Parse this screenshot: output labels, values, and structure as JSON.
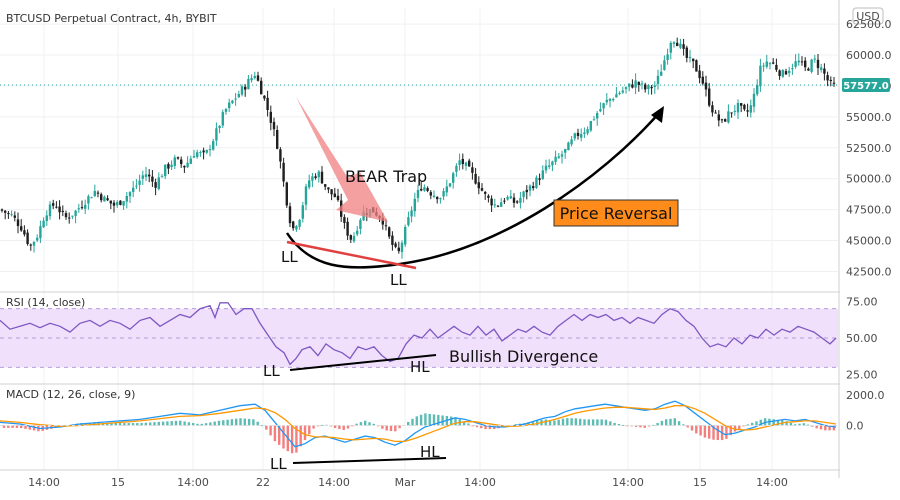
{
  "header": {
    "title": "BTCUSD Perpetual Contract, 4h, BYBIT",
    "currency_badge": "USD"
  },
  "chart_data": [
    {
      "type": "candlestick",
      "pane": "price",
      "title": "BTCUSD Perpetual Contract, 4h, BYBIT",
      "y_ticks": [
        "62500.0",
        "60000.0",
        "57500.0",
        "55000.0",
        "52500.0",
        "50000.0",
        "47500.0",
        "45000.0",
        "42500.0"
      ],
      "y_range": [
        41000,
        63800
      ],
      "last_price": 57577.0,
      "last_price_label": "57577.0",
      "close_path": [
        [
          0,
          47500
        ],
        [
          12,
          47000
        ],
        [
          22,
          46000
        ],
        [
          30,
          44500
        ],
        [
          38,
          45500
        ],
        [
          45,
          47200
        ],
        [
          55,
          48000
        ],
        [
          65,
          46800
        ],
        [
          75,
          47300
        ],
        [
          85,
          48200
        ],
        [
          95,
          49000
        ],
        [
          105,
          48300
        ],
        [
          115,
          47800
        ],
        [
          125,
          48500
        ],
        [
          135,
          49300
        ],
        [
          145,
          50500
        ],
        [
          155,
          49500
        ],
        [
          165,
          50800
        ],
        [
          175,
          51500
        ],
        [
          185,
          51000
        ],
        [
          195,
          52200
        ],
        [
          205,
          51800
        ],
        [
          215,
          53500
        ],
        [
          225,
          55500
        ],
        [
          235,
          56500
        ],
        [
          245,
          57500
        ],
        [
          255,
          58500
        ],
        [
          262,
          57000
        ],
        [
          270,
          55000
        ],
        [
          278,
          52500
        ],
        [
          285,
          49000
        ],
        [
          292,
          45800
        ],
        [
          300,
          47000
        ],
        [
          308,
          49800
        ],
        [
          318,
          50500
        ],
        [
          328,
          49000
        ],
        [
          336,
          48500
        ],
        [
          345,
          46000
        ],
        [
          352,
          45000
        ],
        [
          362,
          47200
        ],
        [
          372,
          47500
        ],
        [
          382,
          46800
        ],
        [
          390,
          45000
        ],
        [
          398,
          43800
        ],
        [
          406,
          46000
        ],
        [
          414,
          48200
        ],
        [
          422,
          49500
        ],
        [
          432,
          48800
        ],
        [
          442,
          48500
        ],
        [
          450,
          49800
        ],
        [
          460,
          51500
        ],
        [
          468,
          50800
        ],
        [
          478,
          49600
        ],
        [
          486,
          48500
        ],
        [
          496,
          47800
        ],
        [
          506,
          48500
        ],
        [
          516,
          48000
        ],
        [
          526,
          49000
        ],
        [
          536,
          49800
        ],
        [
          546,
          50800
        ],
        [
          556,
          51500
        ],
        [
          566,
          52300
        ],
        [
          576,
          53500
        ],
        [
          586,
          54000
        ],
        [
          596,
          55200
        ],
        [
          606,
          56200
        ],
        [
          616,
          56800
        ],
        [
          626,
          57300
        ],
        [
          636,
          57800
        ],
        [
          646,
          57200
        ],
        [
          656,
          57600
        ],
        [
          664,
          59500
        ],
        [
          672,
          61500
        ],
        [
          678,
          61000
        ],
        [
          686,
          59800
        ],
        [
          694,
          59200
        ],
        [
          702,
          58000
        ],
        [
          710,
          56000
        ],
        [
          716,
          55000
        ],
        [
          722,
          54500
        ],
        [
          730,
          55400
        ],
        [
          738,
          55800
        ],
        [
          746,
          55200
        ],
        [
          752,
          56000
        ],
        [
          760,
          58800
        ],
        [
          766,
          59500
        ],
        [
          774,
          59200
        ],
        [
          782,
          58400
        ],
        [
          790,
          59000
        ],
        [
          798,
          59500
        ],
        [
          806,
          58800
        ],
        [
          814,
          59600
        ],
        [
          822,
          58800
        ],
        [
          830,
          57600
        ],
        [
          836,
          57400
        ]
      ],
      "annotations": {
        "bear_trap": "BEAR Trap",
        "price_reversal": "Price Reversal",
        "ll_left": "LL",
        "ll_bottom": "LL"
      }
    },
    {
      "type": "line",
      "pane": "rsi",
      "title": "RSI (14, close)",
      "y_ticks": [
        "75.00",
        "50.00",
        "25.00"
      ],
      "y_range": [
        20,
        80
      ],
      "band": [
        30,
        70
      ],
      "midline": 50,
      "values_path": [
        [
          0,
          62
        ],
        [
          10,
          56
        ],
        [
          20,
          58
        ],
        [
          30,
          60
        ],
        [
          40,
          57
        ],
        [
          50,
          60
        ],
        [
          60,
          58
        ],
        [
          70,
          54
        ],
        [
          80,
          60
        ],
        [
          90,
          62
        ],
        [
          100,
          58
        ],
        [
          110,
          62
        ],
        [
          120,
          60
        ],
        [
          130,
          56
        ],
        [
          140,
          62
        ],
        [
          150,
          64
        ],
        [
          160,
          58
        ],
        [
          170,
          62
        ],
        [
          180,
          66
        ],
        [
          190,
          64
        ],
        [
          200,
          70
        ],
        [
          210,
          72
        ],
        [
          215,
          64
        ],
        [
          220,
          74
        ],
        [
          228,
          74
        ],
        [
          236,
          66
        ],
        [
          244,
          70
        ],
        [
          252,
          70
        ],
        [
          260,
          60
        ],
        [
          268,
          52
        ],
        [
          276,
          44
        ],
        [
          284,
          40
        ],
        [
          290,
          32
        ],
        [
          296,
          36
        ],
        [
          302,
          42
        ],
        [
          310,
          44
        ],
        [
          318,
          38
        ],
        [
          326,
          46
        ],
        [
          334,
          42
        ],
        [
          342,
          40
        ],
        [
          350,
          36
        ],
        [
          358,
          44
        ],
        [
          366,
          42
        ],
        [
          374,
          44
        ],
        [
          382,
          38
        ],
        [
          390,
          34
        ],
        [
          398,
          36
        ],
        [
          406,
          46
        ],
        [
          414,
          52
        ],
        [
          422,
          50
        ],
        [
          430,
          56
        ],
        [
          438,
          50
        ],
        [
          446,
          54
        ],
        [
          454,
          58
        ],
        [
          462,
          54
        ],
        [
          470,
          52
        ],
        [
          478,
          58
        ],
        [
          486,
          52
        ],
        [
          494,
          56
        ],
        [
          502,
          48
        ],
        [
          510,
          52
        ],
        [
          518,
          56
        ],
        [
          526,
          54
        ],
        [
          534,
          58
        ],
        [
          542,
          54
        ],
        [
          550,
          52
        ],
        [
          558,
          58
        ],
        [
          566,
          62
        ],
        [
          574,
          66
        ],
        [
          582,
          62
        ],
        [
          590,
          66
        ],
        [
          598,
          64
        ],
        [
          606,
          66
        ],
        [
          614,
          62
        ],
        [
          622,
          64
        ],
        [
          630,
          60
        ],
        [
          638,
          64
        ],
        [
          646,
          62
        ],
        [
          654,
          60
        ],
        [
          662,
          66
        ],
        [
          670,
          70
        ],
        [
          678,
          68
        ],
        [
          686,
          62
        ],
        [
          694,
          58
        ],
        [
          702,
          50
        ],
        [
          710,
          44
        ],
        [
          718,
          46
        ],
        [
          726,
          44
        ],
        [
          734,
          50
        ],
        [
          742,
          46
        ],
        [
          750,
          52
        ],
        [
          758,
          50
        ],
        [
          766,
          56
        ],
        [
          774,
          52
        ],
        [
          782,
          56
        ],
        [
          790,
          54
        ],
        [
          798,
          58
        ],
        [
          806,
          56
        ],
        [
          814,
          54
        ],
        [
          822,
          50
        ],
        [
          830,
          46
        ],
        [
          836,
          50
        ]
      ],
      "annotations": {
        "bullish_divergence": "Bullish Divergence",
        "ll": "LL",
        "hl": "HL"
      }
    },
    {
      "type": "macd",
      "pane": "macd",
      "title": "MACD (12, 26, close, 9)",
      "y_ticks": [
        "2000.0",
        "0.0"
      ],
      "y_range": [
        -2800,
        2600
      ],
      "macd_path": [
        [
          0,
          200
        ],
        [
          20,
          100
        ],
        [
          40,
          -200
        ],
        [
          60,
          -100
        ],
        [
          80,
          100
        ],
        [
          100,
          200
        ],
        [
          120,
          300
        ],
        [
          140,
          400
        ],
        [
          160,
          600
        ],
        [
          180,
          800
        ],
        [
          200,
          700
        ],
        [
          220,
          1000
        ],
        [
          240,
          1300
        ],
        [
          255,
          1400
        ],
        [
          265,
          1000
        ],
        [
          275,
          200
        ],
        [
          285,
          -600
        ],
        [
          295,
          -1400
        ],
        [
          305,
          -1200
        ],
        [
          315,
          -800
        ],
        [
          325,
          -700
        ],
        [
          335,
          -900
        ],
        [
          345,
          -1100
        ],
        [
          355,
          -900
        ],
        [
          365,
          -700
        ],
        [
          375,
          -800
        ],
        [
          385,
          -1100
        ],
        [
          395,
          -1300
        ],
        [
          405,
          -1000
        ],
        [
          415,
          -500
        ],
        [
          425,
          -100
        ],
        [
          435,
          100
        ],
        [
          445,
          300
        ],
        [
          455,
          500
        ],
        [
          465,
          400
        ],
        [
          475,
          200
        ],
        [
          485,
          0
        ],
        [
          495,
          -100
        ],
        [
          505,
          -100
        ],
        [
          515,
          0
        ],
        [
          525,
          100
        ],
        [
          535,
          300
        ],
        [
          545,
          500
        ],
        [
          555,
          600
        ],
        [
          565,
          900
        ],
        [
          575,
          1100
        ],
        [
          585,
          1200
        ],
        [
          595,
          1300
        ],
        [
          605,
          1400
        ],
        [
          615,
          1300
        ],
        [
          625,
          1200
        ],
        [
          635,
          1100
        ],
        [
          645,
          1000
        ],
        [
          655,
          1100
        ],
        [
          665,
          1400
        ],
        [
          675,
          1600
        ],
        [
          685,
          1300
        ],
        [
          695,
          800
        ],
        [
          705,
          300
        ],
        [
          715,
          -200
        ],
        [
          725,
          -600
        ],
        [
          735,
          -500
        ],
        [
          745,
          -300
        ],
        [
          755,
          -100
        ],
        [
          765,
          200
        ],
        [
          775,
          300
        ],
        [
          785,
          400
        ],
        [
          795,
          300
        ],
        [
          805,
          400
        ],
        [
          815,
          200
        ],
        [
          825,
          0
        ],
        [
          836,
          -100
        ]
      ],
      "signal_path": [
        [
          0,
          300
        ],
        [
          20,
          200
        ],
        [
          40,
          50
        ],
        [
          60,
          -50
        ],
        [
          80,
          0
        ],
        [
          100,
          100
        ],
        [
          120,
          200
        ],
        [
          140,
          300
        ],
        [
          160,
          450
        ],
        [
          180,
          600
        ],
        [
          200,
          650
        ],
        [
          220,
          800
        ],
        [
          240,
          1000
        ],
        [
          255,
          1150
        ],
        [
          265,
          1100
        ],
        [
          275,
          850
        ],
        [
          285,
          400
        ],
        [
          295,
          -200
        ],
        [
          305,
          -600
        ],
        [
          315,
          -750
        ],
        [
          325,
          -750
        ],
        [
          335,
          -800
        ],
        [
          345,
          -900
        ],
        [
          355,
          -950
        ],
        [
          365,
          -900
        ],
        [
          375,
          -850
        ],
        [
          385,
          -900
        ],
        [
          395,
          -1050
        ],
        [
          405,
          -1050
        ],
        [
          415,
          -850
        ],
        [
          425,
          -600
        ],
        [
          435,
          -350
        ],
        [
          445,
          -100
        ],
        [
          455,
          150
        ],
        [
          465,
          250
        ],
        [
          475,
          250
        ],
        [
          485,
          150
        ],
        [
          495,
          50
        ],
        [
          505,
          -50
        ],
        [
          515,
          -50
        ],
        [
          525,
          0
        ],
        [
          535,
          100
        ],
        [
          545,
          250
        ],
        [
          555,
          400
        ],
        [
          565,
          600
        ],
        [
          575,
          800
        ],
        [
          585,
          950
        ],
        [
          595,
          1050
        ],
        [
          605,
          1150
        ],
        [
          615,
          1200
        ],
        [
          625,
          1200
        ],
        [
          635,
          1150
        ],
        [
          645,
          1100
        ],
        [
          655,
          1050
        ],
        [
          665,
          1150
        ],
        [
          675,
          1300
        ],
        [
          685,
          1300
        ],
        [
          695,
          1100
        ],
        [
          705,
          800
        ],
        [
          715,
          400
        ],
        [
          725,
          0
        ],
        [
          735,
          -250
        ],
        [
          745,
          -300
        ],
        [
          755,
          -250
        ],
        [
          765,
          -100
        ],
        [
          775,
          50
        ],
        [
          785,
          200
        ],
        [
          795,
          250
        ],
        [
          805,
          300
        ],
        [
          815,
          300
        ],
        [
          825,
          200
        ],
        [
          836,
          100
        ]
      ],
      "annotations": {
        "ll": "LL",
        "hl": "HL"
      }
    }
  ],
  "x_axis": {
    "labels": [
      "14:00",
      "15",
      "14:00",
      "22",
      "14:00",
      "Mar",
      "14:00",
      "14:00",
      "15",
      "14:00"
    ]
  },
  "colors": {
    "up_candle": "#26a69a",
    "down_candle": "#ef5350",
    "candle_dark": "#1f1f1f",
    "rsi_line": "#7e57c2",
    "rsi_band": "#f0e0fb",
    "macd_line": "#2196f3",
    "signal_line": "#ff9800",
    "price_reversal_bg": "#ff8c1a",
    "bear_trap_arrow": "#f08080",
    "last_price_bg": "#26a69a",
    "support_line": "#e04040"
  }
}
